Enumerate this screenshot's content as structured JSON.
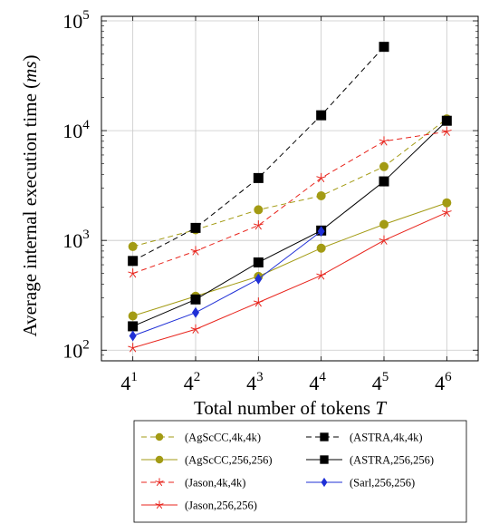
{
  "chart_data": {
    "type": "line",
    "xlabel_text": "Total number of tokens ",
    "xlabel_var": "T",
    "ylabel_text": "Average internal execution time (",
    "ylabel_unit": "ms",
    "ylabel_close": ")",
    "x_scale": "log4",
    "y_scale": "log10",
    "xlim": [
      2,
      8192
    ],
    "ylim": [
      80,
      110000
    ],
    "x_ticks": [
      {
        "value": 4,
        "base": "4",
        "exp": "1"
      },
      {
        "value": 16,
        "base": "4",
        "exp": "2"
      },
      {
        "value": 64,
        "base": "4",
        "exp": "3"
      },
      {
        "value": 256,
        "base": "4",
        "exp": "4"
      },
      {
        "value": 1024,
        "base": "4",
        "exp": "5"
      },
      {
        "value": 4096,
        "base": "4",
        "exp": "6"
      }
    ],
    "y_ticks": [
      {
        "value": 100,
        "base": "10",
        "exp": "2"
      },
      {
        "value": 1000,
        "base": "10",
        "exp": "3"
      },
      {
        "value": 10000,
        "base": "10",
        "exp": "4"
      },
      {
        "value": 100000,
        "base": "10",
        "exp": "5"
      }
    ],
    "grid": true,
    "legend_position": "bottom",
    "series": [
      {
        "name": "(AgScCC,4k,4k)",
        "color": "#a39b14",
        "dash": "dashed",
        "marker": "circle",
        "x": [
          4,
          16,
          64,
          256,
          1024,
          4096
        ],
        "y": [
          880,
          1250,
          1900,
          2550,
          4700,
          12800
        ]
      },
      {
        "name": "(ASTRA,4k,4k)",
        "color": "#000000",
        "dash": "dashed",
        "marker": "square",
        "x": [
          4,
          16,
          64,
          256,
          1024
        ],
        "y": [
          650,
          1300,
          3700,
          13800,
          58000
        ]
      },
      {
        "name": "(AgScCC,256,256)",
        "color": "#a39b14",
        "dash": "solid",
        "marker": "circle",
        "x": [
          4,
          16,
          64,
          256,
          1024,
          4096
        ],
        "y": [
          205,
          310,
          470,
          850,
          1400,
          2200
        ]
      },
      {
        "name": "(ASTRA,256,256)",
        "color": "#000000",
        "dash": "solid",
        "marker": "square",
        "x": [
          4,
          16,
          64,
          256,
          1024,
          4096
        ],
        "y": [
          165,
          290,
          630,
          1230,
          3450,
          12300
        ]
      },
      {
        "name": "(Jason,4k,4k)",
        "color": "#e8241c",
        "dash": "dashed",
        "marker": "star",
        "x": [
          4,
          16,
          64,
          256,
          1024,
          4096
        ],
        "y": [
          500,
          800,
          1370,
          3700,
          8000,
          9800
        ]
      },
      {
        "name": "(Sarl,256,256)",
        "color": "#1f2fd6",
        "dash": "solid",
        "marker": "diamond",
        "x": [
          4,
          16,
          64,
          256
        ],
        "y": [
          135,
          220,
          445,
          1210
        ]
      },
      {
        "name": "(Jason,256,256)",
        "color": "#e8241c",
        "dash": "solid",
        "marker": "star",
        "x": [
          4,
          16,
          64,
          256,
          1024,
          4096
        ],
        "y": [
          105,
          155,
          272,
          480,
          1000,
          1800
        ]
      }
    ]
  }
}
